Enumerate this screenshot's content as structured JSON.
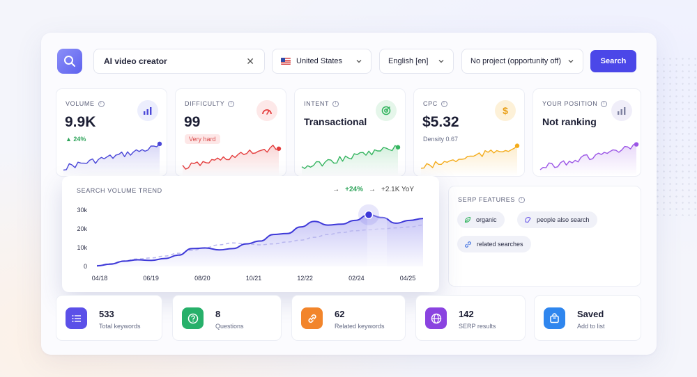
{
  "search": {
    "keyword": "AI video creator",
    "button_label": "Search"
  },
  "filters": {
    "country": "United States",
    "language": "English [en]",
    "project": "No project (opportunity off)"
  },
  "metrics": {
    "volume": {
      "label": "VOLUME",
      "value": "9.9K",
      "change": "▲ 24%"
    },
    "difficulty": {
      "label": "DIFFICULTY",
      "value": "99",
      "badge": "Very hard"
    },
    "intent": {
      "label": "INTENT",
      "value": "Transactional"
    },
    "cpc": {
      "label": "CPC",
      "value": "$5.32",
      "sub": "Density 0.67",
      "icon_glyph": "$"
    },
    "position": {
      "label": "YOUR POSITION",
      "value": "Not ranking"
    }
  },
  "trend": {
    "title": "SEARCH VOLUME TREND",
    "change_pct": "+24%",
    "change_yoy": "+2.1K YoY",
    "arrow_a": "→",
    "arrow_b": "→"
  },
  "chart_data": {
    "type": "area",
    "title": "SEARCH VOLUME TREND",
    "y_ticks": [
      "0",
      "10k",
      "20k",
      "30k"
    ],
    "ylim": [
      0,
      30000
    ],
    "x_ticks": [
      "04/18",
      "06/19",
      "08/20",
      "10/21",
      "12/22",
      "02/24",
      "04/25"
    ],
    "series": [
      {
        "values": [
          300,
          1200,
          2800,
          3500,
          3200,
          4200,
          6000,
          9500,
          9800,
          8800,
          9500,
          12000,
          13500,
          17000,
          17500,
          21000,
          24000,
          22000,
          22500,
          24500,
          27500,
          26000,
          23000,
          24500,
          25500
        ]
      },
      {
        "values": [
          500,
          1500,
          3000,
          4000,
          4500,
          5500,
          7000,
          8500,
          10000,
          11500,
          12500,
          12000,
          11500,
          12000,
          13000,
          14000,
          15500,
          17000,
          18000,
          19000,
          19500,
          20000,
          20500,
          21000,
          22000
        ]
      }
    ],
    "highlight_index": 20,
    "grid": false
  },
  "serp": {
    "title": "SERP FEATURES",
    "chips": [
      "organic",
      "people also search",
      "related searches"
    ]
  },
  "stats": [
    {
      "value": "533",
      "label": "Total keywords",
      "color": "#5b50e8"
    },
    {
      "value": "8",
      "label": "Questions",
      "color": "#27b06a"
    },
    {
      "value": "62",
      "label": "Related keywords",
      "color": "#f2852b"
    },
    {
      "value": "142",
      "label": "SERP results",
      "color": "#8a43e0"
    },
    {
      "value": "Saved",
      "label": "Add to list",
      "color": "#2f86ee"
    }
  ],
  "colors": {
    "accent": "#4b47e8",
    "volume": "#4a47d8",
    "difficulty": "#e43d3d",
    "intent": "#35b560",
    "cpc": "#f4ac1c",
    "position": "#9b55e6"
  },
  "icons": [
    "search-icon",
    "close-icon",
    "us-flag-icon",
    "chevron-down-icon",
    "bar-chart-icon",
    "gauge-icon",
    "target-icon",
    "dollar-icon",
    "list-icon",
    "question-icon",
    "link-icon",
    "globe-icon",
    "bag-icon",
    "leaf-icon",
    "people-icon"
  ]
}
